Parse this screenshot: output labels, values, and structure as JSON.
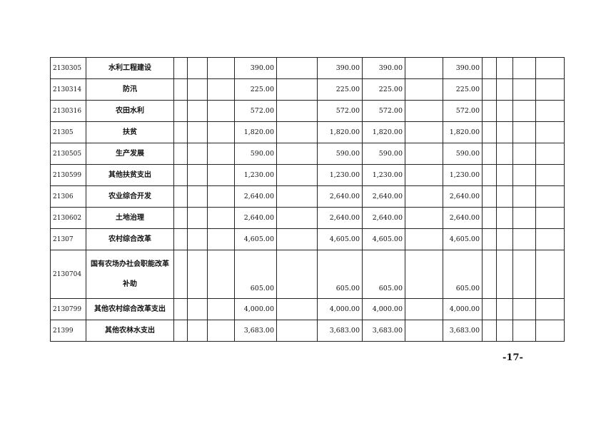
{
  "table": {
    "rows": [
      {
        "code": "2130305",
        "name": "水利工程建设",
        "amounts": [
          "390.00",
          "390.00",
          "390.00",
          "390.00"
        ]
      },
      {
        "code": "2130314",
        "name": "防汛",
        "amounts": [
          "225.00",
          "225.00",
          "225.00",
          "225.00"
        ]
      },
      {
        "code": "2130316",
        "name": "农田水利",
        "amounts": [
          "572.00",
          "572.00",
          "572.00",
          "572.00"
        ]
      },
      {
        "code": "21305",
        "name": "扶贫",
        "amounts": [
          "1,820.00",
          "1,820.00",
          "1,820.00",
          "1,820.00"
        ]
      },
      {
        "code": "2130505",
        "name": "生产发展",
        "amounts": [
          "590.00",
          "590.00",
          "590.00",
          "590.00"
        ]
      },
      {
        "code": "2130599",
        "name": "其他扶贫支出",
        "amounts": [
          "1,230.00",
          "1,230.00",
          "1,230.00",
          "1,230.00"
        ]
      },
      {
        "code": "21306",
        "name": "农业综合开发",
        "amounts": [
          "2,640.00",
          "2,640.00",
          "2,640.00",
          "2,640.00"
        ]
      },
      {
        "code": "2130602",
        "name": "土地治理",
        "amounts": [
          "2,640.00",
          "2,640.00",
          "2,640.00",
          "2,640.00"
        ]
      },
      {
        "code": "21307",
        "name": "农村综合改革",
        "amounts": [
          "4,605.00",
          "4,605.00",
          "4,605.00",
          "4,605.00"
        ]
      },
      {
        "code": "2130704",
        "name": "国有农场办社会职能改革补助",
        "amounts": [
          "605.00",
          "605.00",
          "605.00",
          "605.00"
        ]
      },
      {
        "code": "2130799",
        "name": "其他农村综合改革支出",
        "amounts": [
          "4,000.00",
          "4,000.00",
          "4,000.00",
          "4,000.00"
        ]
      },
      {
        "code": "21399",
        "name": "其他农林水支出",
        "amounts": [
          "3,683.00",
          "3,683.00",
          "3,683.00",
          "3,683.00"
        ]
      }
    ]
  },
  "page_number": "-17-"
}
